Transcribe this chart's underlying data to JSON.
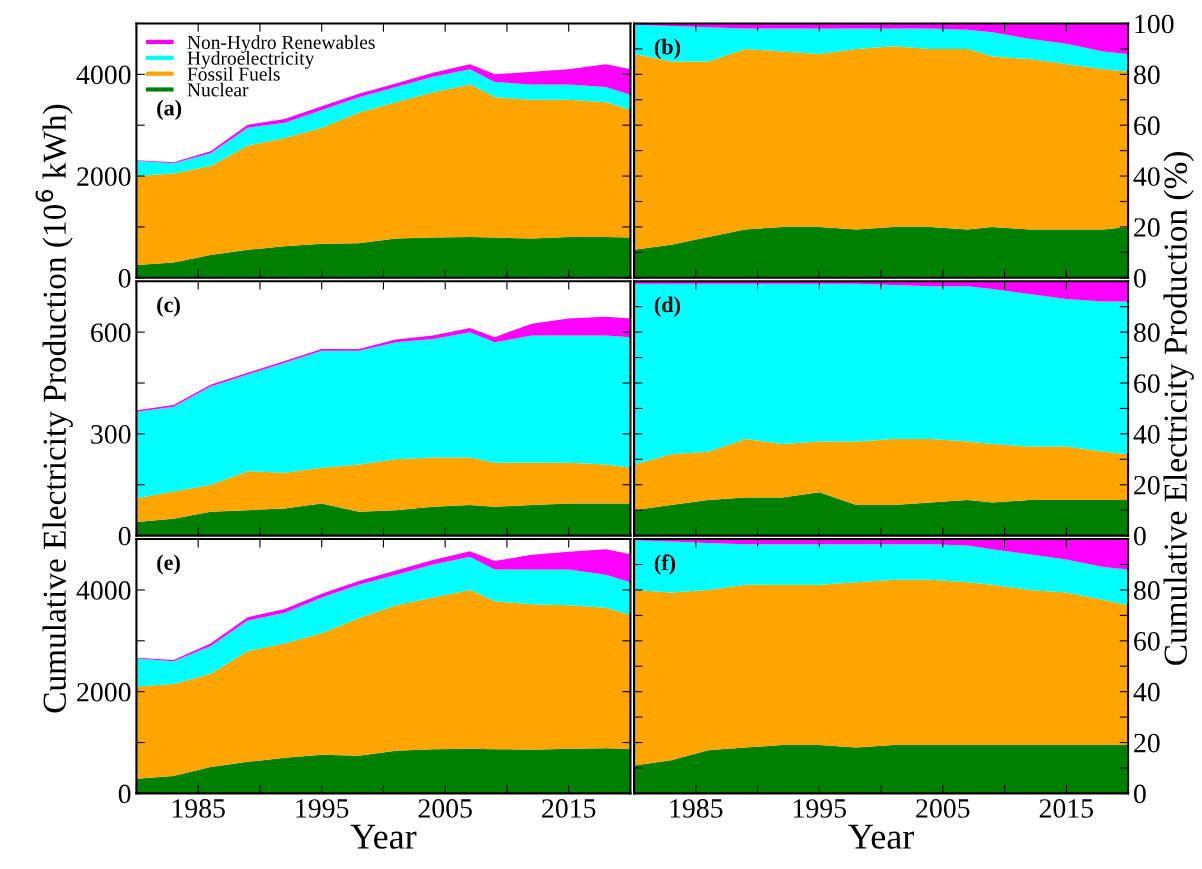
{
  "chart_data": [
    {
      "type": "area",
      "stacked": true,
      "annotations": [
        "(a)"
      ],
      "legend": "top left",
      "tick_labels": "y",
      "x": [
        1980,
        1983,
        1986,
        1989,
        1992,
        1995,
        1998,
        2001,
        2004,
        2007,
        2009,
        2012,
        2015,
        2018,
        2020
      ],
      "xlim": [
        1980,
        2020
      ],
      "xticks": [
        {
          "value": 1980,
          "label": null
        },
        1985,
        {
          "value": 1990,
          "label": null
        },
        1995,
        {
          "value": 2000,
          "label": null
        },
        2005,
        {
          "value": 2010,
          "label": null
        },
        2015,
        {
          "value": 2020,
          "label": null
        }
      ],
      "ylim": [
        0,
        5000
      ],
      "yticks": [
        0,
        {
          "value": 1000,
          "label": null
        },
        2000,
        {
          "value": 3000,
          "label": null
        },
        4000,
        {
          "value": 5000,
          "label": null
        }
      ],
      "series": [
        {
          "name": "Nuclear",
          "color": "#008000",
          "values": [
            250,
            300,
            450,
            550,
            620,
            670,
            680,
            770,
            790,
            800,
            790,
            770,
            800,
            800,
            790
          ]
        },
        {
          "name": "Fossil Fuels",
          "color": "#ffa500",
          "values": [
            1750,
            1750,
            1750,
            2050,
            2130,
            2280,
            2570,
            2680,
            2860,
            3000,
            2760,
            2730,
            2700,
            2650,
            2510
          ]
        },
        {
          "name": "Hydroelectricity",
          "color": "#00ffff",
          "values": [
            300,
            200,
            250,
            350,
            300,
            350,
            300,
            300,
            300,
            300,
            300,
            300,
            300,
            300,
            300
          ]
        },
        {
          "name": "Non-Hydro Renewables",
          "color": "#ff00ff",
          "values": [
            10,
            20,
            40,
            60,
            70,
            70,
            70,
            70,
            80,
            100,
            150,
            250,
            300,
            450,
            500
          ]
        }
      ]
    },
    {
      "type": "area",
      "stacked": true,
      "annotations": [
        "(b)"
      ],
      "tick_labels": "y",
      "x": [
        1980,
        1983,
        1986,
        1989,
        1992,
        1995,
        1998,
        2001,
        2004,
        2007,
        2009,
        2012,
        2015,
        2018,
        2020
      ],
      "xlim": [
        1980,
        2020
      ],
      "xticks": [
        {
          "value": 1980,
          "label": null
        },
        1985,
        {
          "value": 1990,
          "label": null
        },
        1995,
        {
          "value": 2000,
          "label": null
        },
        2005,
        {
          "value": 2010,
          "label": null
        },
        2015,
        {
          "value": 2020,
          "label": null
        }
      ],
      "y2lim": [
        0,
        100
      ],
      "y2ticks": [
        0,
        {
          "value": 10,
          "label": null
        },
        20,
        {
          "value": 30,
          "label": null
        },
        40,
        {
          "value": 50,
          "label": null
        },
        60,
        {
          "value": 70,
          "label": null
        },
        80,
        {
          "value": 90,
          "label": null
        },
        100
      ],
      "series": [
        {
          "color": "#008000",
          "axis": "y2",
          "values": [
            11,
            13,
            16,
            19,
            20,
            20,
            19,
            20,
            20,
            19,
            20,
            19,
            19,
            19,
            20
          ]
        },
        {
          "color": "#ffa500",
          "axis": "y2",
          "values": [
            77,
            72,
            69,
            71,
            69,
            68,
            71,
            71,
            70,
            71,
            67,
            67,
            65,
            63,
            61
          ]
        },
        {
          "color": "#00ffff",
          "axis": "y2",
          "values": [
            11.5,
            14,
            13.5,
            8,
            9,
            10,
            8,
            7,
            8,
            7.5,
            9.5,
            8,
            8,
            7,
            7
          ]
        },
        {
          "color": "#ff00ff",
          "axis": "y2",
          "values": [
            0.5,
            1,
            1.5,
            2,
            2,
            2,
            2,
            2,
            2,
            2.5,
            3.5,
            6,
            8,
            11,
            12
          ]
        }
      ]
    },
    {
      "type": "area",
      "stacked": true,
      "annotations": [
        "(c)"
      ],
      "tick_labels": "y",
      "ylabel": "Cumulative Electricity Production (10$^{6}$ kWh)",
      "x": [
        1980,
        1983,
        1986,
        1989,
        1992,
        1995,
        1998,
        2001,
        2004,
        2007,
        2009,
        2012,
        2015,
        2018,
        2020
      ],
      "xlim": [
        1980,
        2020
      ],
      "xticks": [
        {
          "value": 1980,
          "label": null
        },
        1985,
        {
          "value": 1990,
          "label": null
        },
        1995,
        {
          "value": 2000,
          "label": null
        },
        2005,
        {
          "value": 2010,
          "label": null
        },
        2015,
        {
          "value": 2020,
          "label": null
        }
      ],
      "ylim": [
        0,
        750
      ],
      "yticks": [
        0,
        {
          "value": 150,
          "label": null
        },
        300,
        {
          "value": 450,
          "label": null
        },
        600
      ],
      "series": [
        {
          "color": "#008000",
          "values": [
            40,
            50,
            70,
            75,
            80,
            95,
            70,
            75,
            85,
            90,
            85,
            90,
            95,
            95,
            95
          ]
        },
        {
          "color": "#ffa500",
          "values": [
            70,
            80,
            80,
            115,
            105,
            105,
            140,
            150,
            145,
            140,
            130,
            125,
            120,
            115,
            105
          ]
        },
        {
          "color": "#00ffff",
          "values": [
            255,
            250,
            290,
            285,
            325,
            345,
            335,
            345,
            350,
            370,
            355,
            375,
            375,
            380,
            385
          ]
        },
        {
          "color": "#ff00ff",
          "values": [
            5,
            5,
            5,
            5,
            5,
            5,
            5,
            8,
            10,
            12,
            15,
            35,
            50,
            55,
            55
          ]
        }
      ]
    },
    {
      "type": "area",
      "stacked": true,
      "annotations": [
        "(d)"
      ],
      "tick_labels": "y",
      "y2label": "Cumulative Electricity Production (%)",
      "x": [
        1980,
        1983,
        1986,
        1989,
        1992,
        1995,
        1998,
        2001,
        2004,
        2007,
        2009,
        2012,
        2015,
        2018,
        2020
      ],
      "xlim": [
        1980,
        2020
      ],
      "xticks": [
        {
          "value": 1980,
          "label": null
        },
        1985,
        {
          "value": 1990,
          "label": null
        },
        1995,
        {
          "value": 2000,
          "label": null
        },
        2005,
        {
          "value": 2010,
          "label": null
        },
        2015,
        {
          "value": 2020,
          "label": null
        }
      ],
      "y2lim": [
        0,
        100
      ],
      "y2ticks": [
        0,
        {
          "value": 10,
          "label": null
        },
        20,
        {
          "value": 30,
          "label": null
        },
        40,
        {
          "value": 50,
          "label": null
        },
        60,
        {
          "value": 70,
          "label": null
        },
        80,
        {
          "value": 90,
          "label": null
        }
      ],
      "series": [
        {
          "color": "#008000",
          "axis": "y2",
          "values": [
            10,
            12,
            14,
            15,
            15,
            17,
            12,
            12,
            13,
            14,
            13,
            14,
            14,
            14,
            14
          ]
        },
        {
          "color": "#ffa500",
          "axis": "y2",
          "values": [
            18,
            20,
            19,
            23,
            21,
            20,
            25,
            26,
            25,
            23,
            23,
            21,
            21,
            19,
            18
          ]
        },
        {
          "color": "#00ffff",
          "axis": "y2",
          "values": [
            71,
            67,
            66,
            61,
            63,
            62,
            62,
            60.5,
            60,
            61,
            61,
            60,
            58,
            59,
            60
          ]
        },
        {
          "color": "#ff00ff",
          "axis": "y2",
          "values": [
            1,
            1,
            1,
            1,
            1,
            1,
            1,
            1.5,
            2,
            2,
            3,
            5,
            7,
            8,
            8
          ]
        }
      ]
    },
    {
      "type": "area",
      "stacked": true,
      "annotations": [
        "(e)"
      ],
      "xlabel": "Year",
      "x": [
        1980,
        1983,
        1986,
        1989,
        1992,
        1995,
        1998,
        2001,
        2004,
        2007,
        2009,
        2012,
        2015,
        2018,
        2020
      ],
      "xlim": [
        1980,
        2020
      ],
      "xticks": [
        {
          "value": 1980,
          "label": null
        },
        1985,
        {
          "value": 1990,
          "label": null
        },
        1995,
        {
          "value": 2000,
          "label": null
        },
        2005,
        {
          "value": 2010,
          "label": null
        },
        2015,
        {
          "value": 2020,
          "label": null
        }
      ],
      "ylim": [
        0,
        5000
      ],
      "yticks": [
        0,
        {
          "value": 1000,
          "label": null
        },
        2000,
        {
          "value": 3000,
          "label": null
        },
        4000
      ],
      "series": [
        {
          "color": "#008000",
          "values": [
            290,
            340,
            520,
            620,
            700,
            760,
            740,
            840,
            870,
            880,
            870,
            860,
            880,
            890,
            880
          ]
        },
        {
          "color": "#ffa500",
          "values": [
            1810,
            1810,
            1830,
            2180,
            2250,
            2390,
            2710,
            2860,
            2980,
            3120,
            2910,
            2860,
            2820,
            2760,
            2620
          ]
        },
        {
          "color": "#00ffff",
          "values": [
            550,
            450,
            550,
            600,
            600,
            700,
            650,
            600,
            650,
            650,
            620,
            680,
            700,
            650,
            650
          ]
        },
        {
          "color": "#ff00ff",
          "values": [
            15,
            25,
            45,
            65,
            75,
            75,
            75,
            80,
            90,
            110,
            170,
            290,
            350,
            500,
            550
          ]
        }
      ]
    },
    {
      "type": "area",
      "stacked": true,
      "annotations": [
        "(f)"
      ],
      "xlabel": "Year",
      "x": [
        1980,
        1983,
        1986,
        1989,
        1992,
        1995,
        1998,
        2001,
        2004,
        2007,
        2009,
        2012,
        2015,
        2018,
        2020
      ],
      "xlim": [
        1980,
        2020
      ],
      "xticks": [
        {
          "value": 1980,
          "label": null
        },
        1985,
        {
          "value": 1990,
          "label": null
        },
        1995,
        {
          "value": 2000,
          "label": null
        },
        2005,
        {
          "value": 2010,
          "label": null
        },
        2015,
        {
          "value": 2020,
          "label": null
        }
      ],
      "y2lim": [
        0,
        100
      ],
      "y2ticks": [
        0,
        {
          "value": 10,
          "label": null
        },
        20,
        {
          "value": 30,
          "label": null
        },
        40,
        {
          "value": 50,
          "label": null
        },
        60,
        {
          "value": 70,
          "label": null
        },
        80,
        {
          "value": 90,
          "label": null
        }
      ],
      "series": [
        {
          "color": "#008000",
          "axis": "y2",
          "values": [
            11,
            13,
            17,
            18,
            19,
            19,
            18,
            19,
            19,
            19,
            19,
            19,
            19,
            19,
            19
          ]
        },
        {
          "color": "#ffa500",
          "axis": "y2",
          "values": [
            69,
            66,
            63,
            64,
            63,
            63,
            65,
            65,
            65,
            64,
            63,
            61,
            60,
            57,
            55
          ]
        },
        {
          "color": "#00ffff",
          "axis": "y2",
          "values": [
            19.5,
            20,
            18.5,
            16,
            16,
            16,
            15,
            14,
            14,
            14.5,
            14,
            14,
            13,
            13,
            14
          ]
        },
        {
          "color": "#ff00ff",
          "axis": "y2",
          "values": [
            0.5,
            1,
            1.5,
            2,
            2,
            2,
            2,
            2,
            2,
            2.5,
            4,
            6,
            8,
            11,
            12
          ]
        }
      ]
    }
  ]
}
